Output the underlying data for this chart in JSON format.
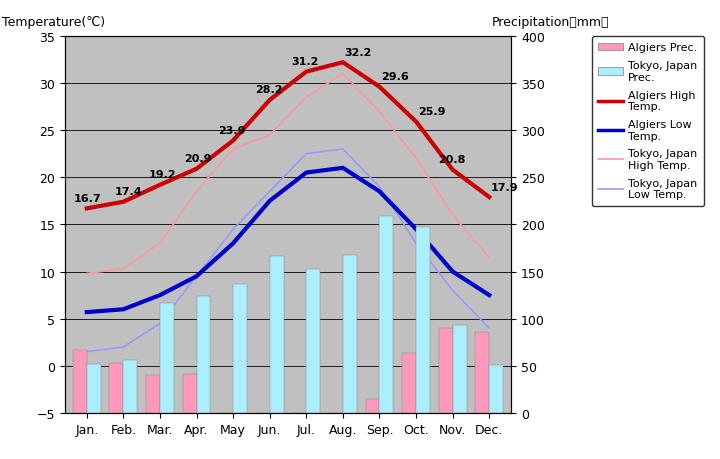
{
  "months": [
    "Jan.",
    "Feb.",
    "Mar.",
    "Apr.",
    "May",
    "Jun.",
    "Jul.",
    "Aug.",
    "Sep.",
    "Oct.",
    "Nov.",
    "Dec."
  ],
  "algiers_high": [
    16.7,
    17.4,
    19.2,
    20.9,
    23.9,
    28.2,
    31.2,
    32.2,
    29.6,
    25.9,
    20.8,
    17.9
  ],
  "algiers_low": [
    5.7,
    6.0,
    7.5,
    9.5,
    13.0,
    17.5,
    20.5,
    21.0,
    18.5,
    14.5,
    10.0,
    7.5
  ],
  "tokyo_high": [
    9.8,
    10.3,
    13.0,
    18.5,
    23.0,
    24.5,
    28.5,
    31.0,
    27.0,
    22.0,
    16.0,
    11.5
  ],
  "tokyo_low": [
    1.5,
    2.0,
    4.5,
    9.5,
    14.5,
    18.5,
    22.5,
    23.0,
    19.0,
    13.0,
    8.0,
    4.0
  ],
  "algiers_prec_mm": [
    67,
    53,
    40,
    41,
    0,
    0,
    0,
    0,
    15,
    64,
    90,
    86
  ],
  "tokyo_prec_mm": [
    52,
    56,
    117,
    124,
    137,
    167,
    153,
    168,
    209,
    197,
    93,
    51
  ],
  "background_color": "#c0c0c0",
  "fig_background": "#ffffff",
  "title_left": "Temperature(℃)",
  "title_right": "Precipitation（mm）",
  "ylim_temp": [
    -5,
    35
  ],
  "ylim_prec": [
    0,
    400
  ],
  "algiers_high_color": "#cc0000",
  "algiers_low_color": "#0000cc",
  "tokyo_high_color": "#ff9999",
  "tokyo_low_color": "#9999ff",
  "algiers_prec_color": "#ff99bb",
  "tokyo_prec_color": "#aaeeff",
  "grid_color": "#000000",
  "legend_labels": [
    "Algiers Prec.",
    "Tokyo, Japan\nPrec.",
    "Algiers High\nTemp.",
    "Algiers Low\nTemp.",
    "Tokyo, Japan\nHigh Temp.",
    "Tokyo, Japan\nLow Temp."
  ]
}
